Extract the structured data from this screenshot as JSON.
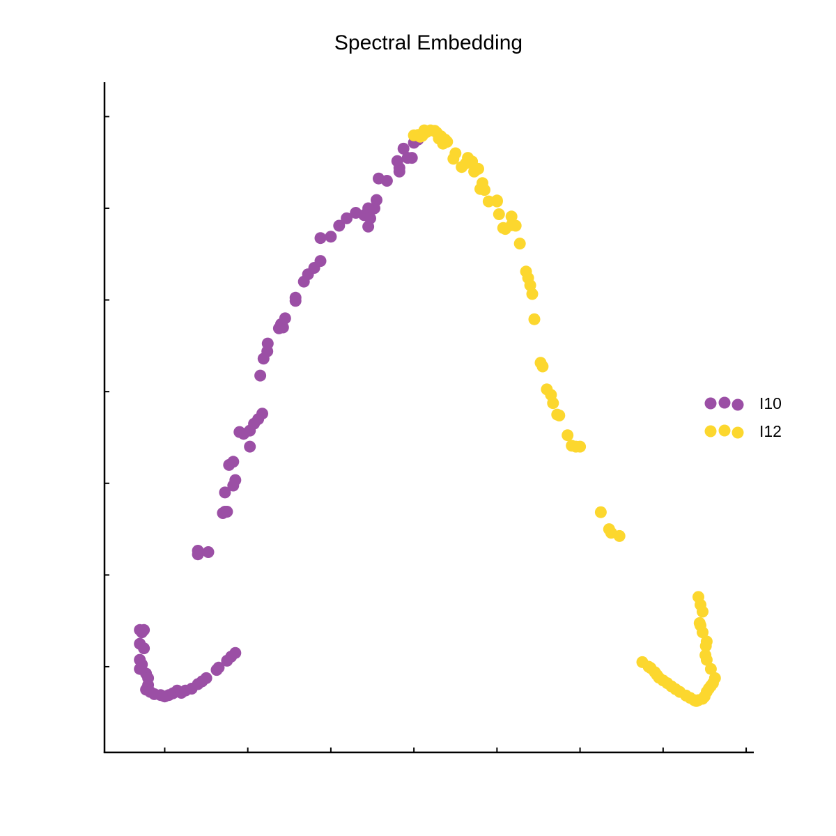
{
  "chart_data": {
    "type": "scatter",
    "title": "Spectral Embedding",
    "xlabel": "",
    "ylabel": "",
    "x_ticks": [
      -0.6,
      -0.4,
      -0.2,
      0.0,
      0.2,
      0.4,
      0.6,
      0.8
    ],
    "y_ticks": [
      -0.6,
      -0.4,
      -0.2,
      0.0,
      0.2,
      0.4,
      0.6
    ],
    "xlim": [
      -0.745,
      0.815
    ],
    "ylim": [
      -0.787,
      0.675
    ],
    "grid": false,
    "legend_position": "right",
    "series": [
      {
        "name": "I10",
        "color": "#9b4fa5",
        "points": [
          [
            -0.66,
            -0.52
          ],
          [
            -0.655,
            -0.525
          ],
          [
            -0.65,
            -0.52
          ],
          [
            -0.66,
            -0.55
          ],
          [
            -0.65,
            -0.56
          ],
          [
            -0.66,
            -0.585
          ],
          [
            -0.655,
            -0.595
          ],
          [
            -0.66,
            -0.605
          ],
          [
            -0.645,
            -0.615
          ],
          [
            -0.64,
            -0.625
          ],
          [
            -0.64,
            -0.64
          ],
          [
            -0.645,
            -0.65
          ],
          [
            -0.635,
            -0.655
          ],
          [
            -0.625,
            -0.66
          ],
          [
            -0.61,
            -0.662
          ],
          [
            -0.6,
            -0.665
          ],
          [
            -0.59,
            -0.662
          ],
          [
            -0.58,
            -0.658
          ],
          [
            -0.57,
            -0.652
          ],
          [
            -0.56,
            -0.657
          ],
          [
            -0.55,
            -0.652
          ],
          [
            -0.535,
            -0.648
          ],
          [
            -0.52,
            -0.638
          ],
          [
            -0.51,
            -0.632
          ],
          [
            -0.5,
            -0.625
          ],
          [
            -0.475,
            -0.607
          ],
          [
            -0.47,
            -0.602
          ],
          [
            -0.45,
            -0.587
          ],
          [
            -0.44,
            -0.578
          ],
          [
            -0.43,
            -0.57
          ],
          [
            -0.52,
            -0.355
          ],
          [
            -0.52,
            -0.347
          ],
          [
            -0.495,
            -0.35
          ],
          [
            -0.46,
            -0.265
          ],
          [
            -0.455,
            -0.262
          ],
          [
            -0.45,
            -0.262
          ],
          [
            -0.455,
            -0.22
          ],
          [
            -0.435,
            -0.205
          ],
          [
            -0.43,
            -0.193
          ],
          [
            -0.445,
            -0.16
          ],
          [
            -0.435,
            -0.153
          ],
          [
            -0.42,
            -0.088
          ],
          [
            -0.41,
            -0.092
          ],
          [
            -0.395,
            -0.085
          ],
          [
            -0.385,
            -0.07
          ],
          [
            -0.375,
            -0.06
          ],
          [
            -0.365,
            -0.048
          ],
          [
            -0.395,
            -0.12
          ],
          [
            -0.37,
            0.035
          ],
          [
            -0.362,
            0.072
          ],
          [
            -0.353,
            0.088
          ],
          [
            -0.352,
            0.105
          ],
          [
            -0.325,
            0.138
          ],
          [
            -0.315,
            0.14
          ],
          [
            -0.32,
            0.147
          ],
          [
            -0.31,
            0.16
          ],
          [
            -0.285,
            0.198
          ],
          [
            -0.285,
            0.205
          ],
          [
            -0.265,
            0.24
          ],
          [
            -0.255,
            0.256
          ],
          [
            -0.24,
            0.27
          ],
          [
            -0.225,
            0.285
          ],
          [
            -0.225,
            0.335
          ],
          [
            -0.2,
            0.338
          ],
          [
            -0.18,
            0.362
          ],
          [
            -0.162,
            0.378
          ],
          [
            -0.14,
            0.39
          ],
          [
            -0.12,
            0.385
          ],
          [
            -0.11,
            0.4
          ],
          [
            -0.105,
            0.378
          ],
          [
            -0.11,
            0.36
          ],
          [
            -0.095,
            0.4
          ],
          [
            -0.09,
            0.418
          ],
          [
            -0.085,
            0.465
          ],
          [
            -0.065,
            0.46
          ],
          [
            -0.04,
            0.503
          ],
          [
            -0.035,
            0.488
          ],
          [
            -0.035,
            0.48
          ],
          [
            -0.025,
            0.53
          ],
          [
            -0.015,
            0.51
          ],
          [
            -0.005,
            0.51
          ],
          [
            0.0,
            0.543
          ],
          [
            0.01,
            0.55
          ],
          [
            0.015,
            0.56
          ]
        ]
      },
      {
        "name": "I12",
        "color": "#fcd72e",
        "points": [
          [
            0.0,
            0.559
          ],
          [
            0.01,
            0.56
          ],
          [
            0.015,
            0.556
          ],
          [
            0.02,
            0.558
          ],
          [
            0.025,
            0.57
          ],
          [
            0.03,
            0.566
          ],
          [
            0.04,
            0.57
          ],
          [
            0.05,
            0.569
          ],
          [
            0.055,
            0.565
          ],
          [
            0.06,
            0.552
          ],
          [
            0.065,
            0.557
          ],
          [
            0.07,
            0.541
          ],
          [
            0.075,
            0.55
          ],
          [
            0.08,
            0.545
          ],
          [
            0.095,
            0.508
          ],
          [
            0.1,
            0.52
          ],
          [
            0.115,
            0.49
          ],
          [
            0.125,
            0.498
          ],
          [
            0.13,
            0.51
          ],
          [
            0.14,
            0.502
          ],
          [
            0.145,
            0.48
          ],
          [
            0.155,
            0.486
          ],
          [
            0.16,
            0.442
          ],
          [
            0.165,
            0.455
          ],
          [
            0.17,
            0.44
          ],
          [
            0.18,
            0.415
          ],
          [
            0.2,
            0.415
          ],
          [
            0.2,
            0.417
          ],
          [
            0.205,
            0.387
          ],
          [
            0.215,
            0.357
          ],
          [
            0.22,
            0.355
          ],
          [
            0.235,
            0.382
          ],
          [
            0.235,
            0.363
          ],
          [
            0.245,
            0.362
          ],
          [
            0.255,
            0.323
          ],
          [
            0.27,
            0.262
          ],
          [
            0.275,
            0.248
          ],
          [
            0.28,
            0.232
          ],
          [
            0.285,
            0.213
          ],
          [
            0.29,
            0.158
          ],
          [
            0.305,
            0.063
          ],
          [
            0.31,
            0.055
          ],
          [
            0.32,
            0.005
          ],
          [
            0.33,
            -0.007
          ],
          [
            0.335,
            -0.025
          ],
          [
            0.345,
            -0.05
          ],
          [
            0.35,
            -0.052
          ],
          [
            0.37,
            -0.095
          ],
          [
            0.38,
            -0.118
          ],
          [
            0.39,
            -0.12
          ],
          [
            0.4,
            -0.12
          ],
          [
            0.45,
            -0.263
          ],
          [
            0.47,
            -0.3
          ],
          [
            0.475,
            -0.308
          ],
          [
            0.495,
            -0.315
          ],
          [
            0.55,
            -0.59
          ],
          [
            0.565,
            -0.6
          ],
          [
            0.57,
            -0.603
          ],
          [
            0.58,
            -0.612
          ],
          [
            0.585,
            -0.618
          ],
          [
            0.59,
            -0.624
          ],
          [
            0.6,
            -0.63
          ],
          [
            0.61,
            -0.636
          ],
          [
            0.62,
            -0.643
          ],
          [
            0.63,
            -0.649
          ],
          [
            0.64,
            -0.655
          ],
          [
            0.655,
            -0.663
          ],
          [
            0.665,
            -0.668
          ],
          [
            0.675,
            -0.673
          ],
          [
            0.68,
            -0.675
          ],
          [
            0.685,
            -0.673
          ],
          [
            0.695,
            -0.67
          ],
          [
            0.7,
            -0.665
          ],
          [
            0.705,
            -0.655
          ],
          [
            0.71,
            -0.648
          ],
          [
            0.715,
            -0.642
          ],
          [
            0.72,
            -0.636
          ],
          [
            0.725,
            -0.625
          ],
          [
            0.715,
            -0.605
          ],
          [
            0.705,
            -0.585
          ],
          [
            0.702,
            -0.575
          ],
          [
            0.703,
            -0.555
          ],
          [
            0.705,
            -0.545
          ],
          [
            0.695,
            -0.525
          ],
          [
            0.69,
            -0.51
          ],
          [
            0.688,
            -0.505
          ],
          [
            0.695,
            -0.48
          ],
          [
            0.69,
            -0.465
          ],
          [
            0.685,
            -0.448
          ]
        ]
      }
    ]
  }
}
